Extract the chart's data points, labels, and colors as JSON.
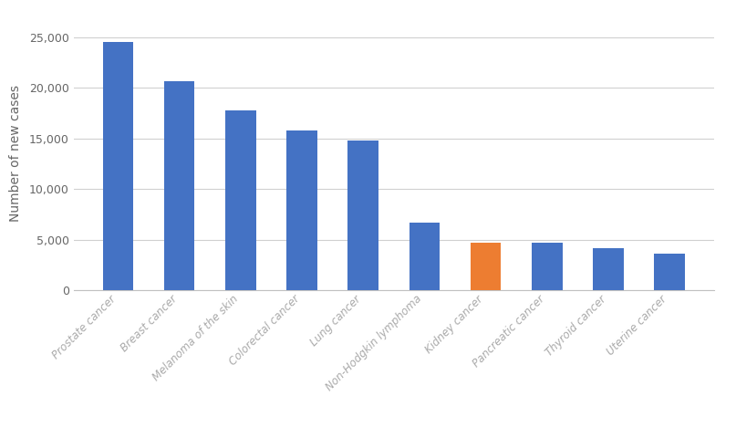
{
  "categories": [
    "Prostate cancer",
    "Breast cancer",
    "Melanoma of the skin",
    "Colorectal cancer",
    "Lung cancer",
    "Non-Hodgkin lymphoma",
    "Kidney cancer",
    "Pancreatic cancer",
    "Thyroid cancer",
    "Uterine cancer"
  ],
  "values": [
    24500,
    20700,
    17800,
    15800,
    14800,
    6700,
    4700,
    4700,
    4200,
    3600
  ],
  "bar_colors": [
    "#4472C4",
    "#4472C4",
    "#4472C4",
    "#4472C4",
    "#4472C4",
    "#4472C4",
    "#ED7D31",
    "#4472C4",
    "#4472C4",
    "#4472C4"
  ],
  "ylabel": "Number of new cases",
  "ylim": [
    0,
    27000
  ],
  "yticks": [
    0,
    5000,
    10000,
    15000,
    20000,
    25000
  ],
  "ytick_labels": [
    "0",
    "5,000",
    "10,000",
    "15,000",
    "20,000",
    "25,000"
  ],
  "background_color": "#ffffff",
  "grid_color": "#d0d0d0",
  "bar_width": 0.5,
  "label_fontsize": 8.5,
  "tick_fontsize": 9,
  "ylabel_fontsize": 10,
  "xtick_color": "#aaaaaa",
  "ytick_color": "#666666"
}
